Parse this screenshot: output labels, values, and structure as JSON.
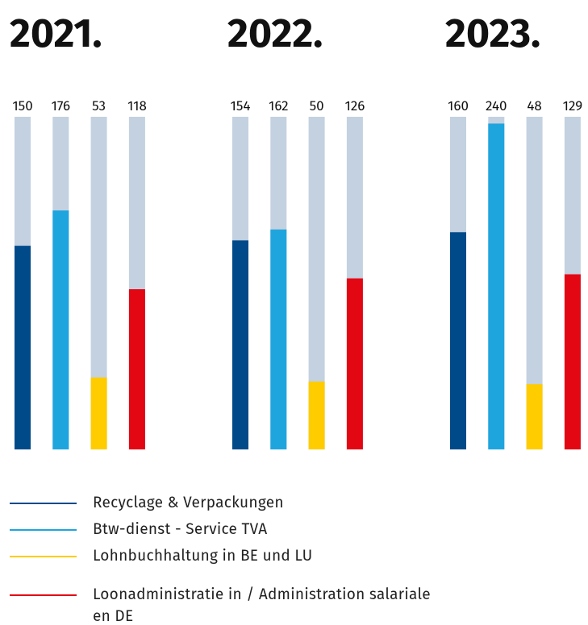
{
  "chart_data": {
    "type": "bar",
    "categories": [
      "2021.",
      "2022.",
      "2023."
    ],
    "series": [
      {
        "name": "Recyclage & Verpackungen",
        "color": "#004a8a",
        "values": [
          150,
          154,
          160
        ]
      },
      {
        "name": "Btw-dienst - Service TVA",
        "color": "#1ea5de",
        "values": [
          176,
          162,
          240
        ]
      },
      {
        "name": "Lohnbuchhaltung in BE und LU",
        "color": "#ffcc00",
        "values": [
          53,
          50,
          48
        ]
      },
      {
        "name": "Loonadministratie in / Administration salariale en DE",
        "color": "#e30613",
        "values": [
          118,
          126,
          129
        ]
      }
    ],
    "ylim": [
      0,
      245
    ],
    "track_color": "#c3d1e0"
  }
}
